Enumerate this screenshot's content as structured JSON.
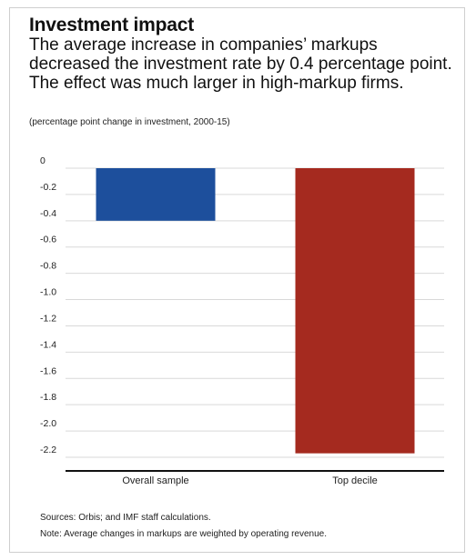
{
  "title": "Investment impact",
  "subtitle": "The average increase in companies’ markups decreased the investment rate by 0.4 percentage point. The effect was much larger in high-markup firms.",
  "unit_note": "(percentage point change in investment, 2000-15)",
  "chart_data": {
    "type": "bar",
    "categories": [
      "Overall sample",
      "Top decile"
    ],
    "values": [
      -0.4,
      -2.17
    ],
    "colors": [
      "#1d4f9c",
      "#a52a1f"
    ],
    "ylim": [
      -2.2,
      0
    ],
    "yticks": [
      0,
      -0.2,
      -0.4,
      -0.6,
      -0.8,
      -1.0,
      -1.2,
      -1.4,
      -1.6,
      -1.8,
      -2.0,
      -2.2
    ],
    "ytick_labels": [
      "0",
      "-0.2",
      "-0.4",
      "-0.6",
      "-0.8",
      "-1.0",
      "-1.2",
      "-1.4",
      "-1.6",
      "-1.8",
      "-2.0",
      "-2.2"
    ],
    "grid": true
  },
  "sources": "Sources: Orbis; and IMF staff calculations.",
  "note": "Note: Average changes in markups are weighted by operating revenue."
}
